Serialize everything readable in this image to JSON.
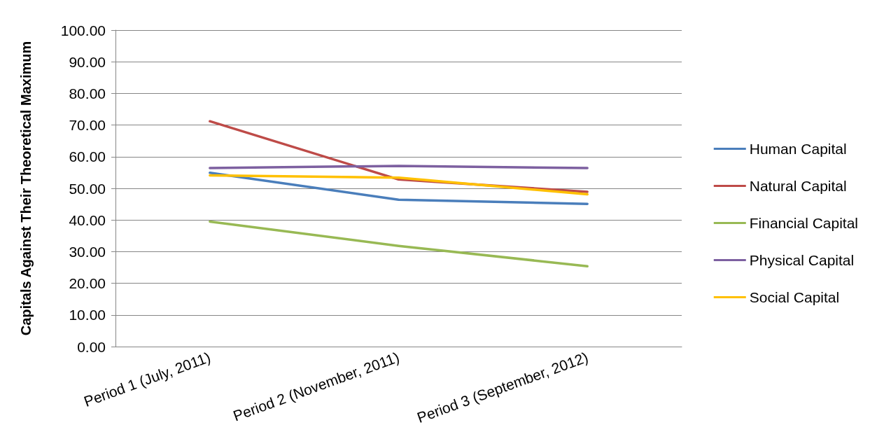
{
  "chart_data": {
    "type": "line",
    "ylabel": "Capitals Against Their Theoretical Maximum",
    "categories": [
      "Period 1 (July, 2011)",
      "Period 2 (November, 2011)",
      "Period 3 (September, 2012)"
    ],
    "series": [
      {
        "name": "Human Capital",
        "color": "#4a7ebb",
        "values": [
          54.9,
          46.4,
          45.1
        ]
      },
      {
        "name": "Natural Capital",
        "color": "#be4b48",
        "values": [
          71.2,
          52.8,
          48.9
        ]
      },
      {
        "name": "Financial Capital",
        "color": "#98b954",
        "values": [
          39.5,
          31.8,
          25.4
        ]
      },
      {
        "name": "Physical Capital",
        "color": "#7d60a0",
        "values": [
          56.4,
          57.1,
          56.4
        ]
      },
      {
        "name": "Social Capital",
        "color": "#ffc000",
        "values": [
          54.1,
          53.4,
          48.1
        ]
      }
    ],
    "ylim": [
      0,
      100
    ],
    "yticks": [
      {
        "value": 0,
        "label": "0.00"
      },
      {
        "value": 10,
        "label": "10.00"
      },
      {
        "value": 20,
        "label": "20.00"
      },
      {
        "value": 30,
        "label": "30.00"
      },
      {
        "value": 40,
        "label": "40.00"
      },
      {
        "value": 50,
        "label": "50.00"
      },
      {
        "value": 60,
        "label": "60.00"
      },
      {
        "value": 70,
        "label": "70.00"
      },
      {
        "value": 80,
        "label": "80.00"
      },
      {
        "value": 90,
        "label": "90.00"
      },
      {
        "value": 100,
        "label": "100.00"
      }
    ],
    "grid": "y",
    "legend": "right",
    "marker": "none",
    "line_style": "solid"
  }
}
